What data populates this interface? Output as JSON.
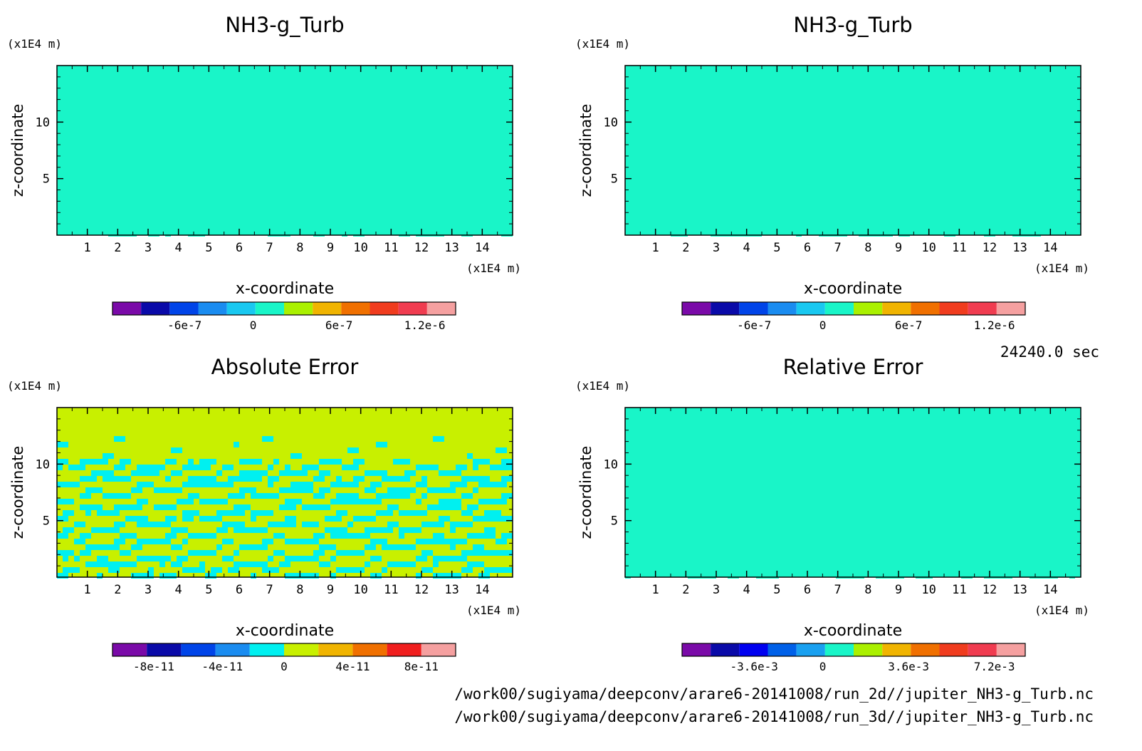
{
  "figure": {
    "time_label": "24240.0 sec",
    "footer": [
      "/work00/sugiyama/deepconv/arare6-20141008/run_2d//jupiter_NH3-g_Turb.nc",
      "/work00/sugiyama/deepconv/arare6-20141008/run_3d//jupiter_NH3-g_Turb.nc"
    ]
  },
  "chart_data": [
    {
      "type": "heatmap",
      "title": "NH3-g_Turb",
      "xlabel": "x-coordinate",
      "ylabel": "z-coordinate",
      "x_unit": "(x1E4 m)",
      "y_unit": "(x1E4 m)",
      "xlim": [
        0,
        15
      ],
      "ylim": [
        0,
        15
      ],
      "x_ticks": [
        "1",
        "2",
        "3",
        "4",
        "5",
        "6",
        "7",
        "8",
        "9",
        "10",
        "11",
        "12",
        "13",
        "14"
      ],
      "y_ticks": [
        "5",
        "10"
      ],
      "colorbar": {
        "colors": [
          "#7a0aa8",
          "#0a0aa8",
          "#0044e8",
          "#1a8cf0",
          "#19c8f0",
          "#19f5c8",
          "#aaf000",
          "#f0b400",
          "#f07000",
          "#f03c1e",
          "#f03c50",
          "#f5a0a0"
        ],
        "tick_labels": [
          "-6e-7",
          "0",
          "6e-7",
          "1.2e-6"
        ]
      }
    },
    {
      "type": "heatmap",
      "title": "NH3-g_Turb",
      "xlabel": "x-coordinate",
      "ylabel": "z-coordinate",
      "x_unit": "(x1E4 m)",
      "y_unit": "(x1E4 m)",
      "xlim": [
        0,
        15
      ],
      "ylim": [
        0,
        15
      ],
      "x_ticks": [
        "1",
        "2",
        "3",
        "4",
        "5",
        "6",
        "7",
        "8",
        "9",
        "10",
        "11",
        "12",
        "13",
        "14"
      ],
      "y_ticks": [
        "5",
        "10"
      ],
      "colorbar": {
        "colors": [
          "#7a0aa8",
          "#0a0aa8",
          "#0044e8",
          "#1a8cf0",
          "#19c8f0",
          "#19f5c8",
          "#aaf000",
          "#f0b400",
          "#f07000",
          "#f03c1e",
          "#f03c50",
          "#f5a0a0"
        ],
        "tick_labels": [
          "-6e-7",
          "0",
          "6e-7",
          "1.2e-6"
        ]
      }
    },
    {
      "type": "heatmap",
      "title": "Absolute Error",
      "xlabel": "x-coordinate",
      "ylabel": "z-coordinate",
      "x_unit": "(x1E4 m)",
      "y_unit": "(x1E4 m)",
      "xlim": [
        0,
        15
      ],
      "ylim": [
        0,
        15
      ],
      "x_ticks": [
        "1",
        "2",
        "3",
        "4",
        "5",
        "6",
        "7",
        "8",
        "9",
        "10",
        "11",
        "12",
        "13",
        "14"
      ],
      "y_ticks": [
        "5",
        "10"
      ],
      "colorbar": {
        "colors": [
          "#7a0aa8",
          "#0a0aa8",
          "#0044e8",
          "#1a8cf0",
          "#00f0f0",
          "#c8f000",
          "#f0b400",
          "#f07000",
          "#f01e1e",
          "#f5a0a0"
        ],
        "tick_labels": [
          "-8e-11",
          "-4e-11",
          "0",
          "4e-11",
          "8e-11"
        ]
      }
    },
    {
      "type": "heatmap",
      "title": "Relative Error",
      "xlabel": "x-coordinate",
      "ylabel": "z-coordinate",
      "x_unit": "(x1E4 m)",
      "y_unit": "(x1E4 m)",
      "xlim": [
        0,
        15
      ],
      "ylim": [
        0,
        15
      ],
      "x_ticks": [
        "1",
        "2",
        "3",
        "4",
        "5",
        "6",
        "7",
        "8",
        "9",
        "10",
        "11",
        "12",
        "13",
        "14"
      ],
      "y_ticks": [
        "5",
        "10"
      ],
      "colorbar": {
        "colors": [
          "#7a0aa8",
          "#0a0aa8",
          "#0000f0",
          "#0060e8",
          "#19a0f0",
          "#19f5c8",
          "#aaf000",
          "#f0b400",
          "#f07000",
          "#f03c1e",
          "#f03c50",
          "#f5a0a0"
        ],
        "tick_labels": [
          "-3.6e-3",
          "0",
          "3.6e-3",
          "7.2e-3"
        ]
      }
    }
  ]
}
